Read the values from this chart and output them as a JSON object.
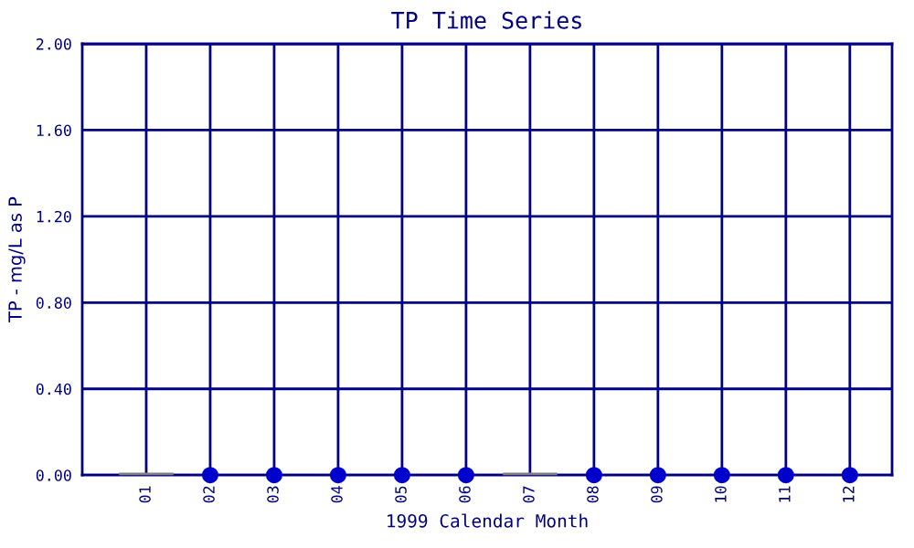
{
  "chart_data": {
    "type": "scatter",
    "title": "TP Time Series",
    "xlabel": "1999 Calendar Month",
    "ylabel": "TP - mg/L as P",
    "categories": [
      "01",
      "02",
      "03",
      "04",
      "05",
      "06",
      "07",
      "08",
      "09",
      "10",
      "11",
      "12"
    ],
    "series": [
      {
        "type": "bar",
        "color": "#808080",
        "values": [
          0,
          null,
          null,
          null,
          null,
          null,
          0,
          null,
          null,
          null,
          null,
          null
        ]
      },
      {
        "color": "#0000cc",
        "values": [
          null,
          0,
          0,
          0,
          0,
          0,
          null,
          0,
          0,
          0,
          0,
          0
        ]
      }
    ],
    "ylim": [
      0,
      2
    ],
    "yticks": [
      {
        "value": 0,
        "label": "0.00"
      },
      {
        "value": 0.4,
        "label": "0.40"
      },
      {
        "value": 0.8,
        "label": "0.80"
      },
      {
        "value": 1.2,
        "label": "1.20"
      },
      {
        "value": 1.6,
        "label": "1.60"
      },
      {
        "value": 2,
        "label": "2.00"
      }
    ],
    "grid": true,
    "marker": "circle"
  }
}
